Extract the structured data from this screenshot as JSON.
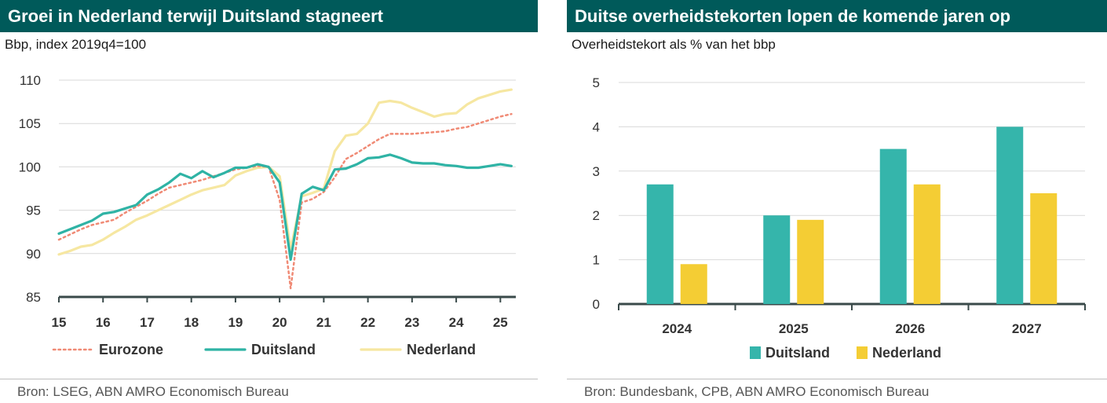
{
  "colors": {
    "header_bg": "#005a5a",
    "eurozone": "#f08a75",
    "duitsland": "#2fb3a5",
    "nederland": "#f6e7a1",
    "bar_duitsland": "#35b5ab",
    "bar_nederland": "#f4cd34",
    "axis": "#3a4a4a",
    "grid": "#d9d9d9"
  },
  "left": {
    "title": "Groei in Nederland terwijl Duitsland stagneert",
    "subtitle": "Bbp, index 2019q4=100",
    "source": "Bron: LSEG, ABN AMRO Economisch Bureau",
    "legend": [
      "Eurozone",
      "Duitsland",
      "Nederland"
    ]
  },
  "right": {
    "title": "Duitse overheidstekorten lopen de komende jaren op",
    "subtitle": "Overheidstekort als % van het bbp",
    "source": "Bron: Bundesbank, CPB, ABN AMRO Economisch Bureau",
    "legend": [
      "Duitsland",
      "Nederland"
    ]
  },
  "chart_data": [
    {
      "type": "line",
      "title": "Groei in Nederland terwijl Duitsland stagneert",
      "ylabel": "Bbp, index 2019q4=100",
      "xlabel": "",
      "x_ticks": [
        "15",
        "16",
        "17",
        "18",
        "19",
        "20",
        "21",
        "22",
        "23",
        "24",
        "25"
      ],
      "y_ticks": [
        "85",
        "90",
        "95",
        "100",
        "105",
        "110"
      ],
      "xlim": [
        2015,
        2025.35
      ],
      "ylim": [
        85,
        111
      ],
      "x": [
        2015.0,
        2015.25,
        2015.5,
        2015.75,
        2016.0,
        2016.25,
        2016.5,
        2016.75,
        2017.0,
        2017.25,
        2017.5,
        2017.75,
        2018.0,
        2018.25,
        2018.5,
        2018.75,
        2019.0,
        2019.25,
        2019.5,
        2019.75,
        2020.0,
        2020.25,
        2020.5,
        2020.75,
        2021.0,
        2021.25,
        2021.5,
        2021.75,
        2022.0,
        2022.25,
        2022.5,
        2022.75,
        2023.0,
        2023.25,
        2023.5,
        2023.75,
        2024.0,
        2024.25,
        2024.5,
        2024.75,
        2025.0,
        2025.25
      ],
      "series": [
        {
          "name": "Eurozone",
          "style": "dotted",
          "values": [
            91.6,
            92.2,
            92.8,
            93.3,
            93.6,
            93.9,
            94.7,
            95.4,
            96.1,
            96.9,
            97.6,
            97.9,
            98.2,
            98.5,
            98.9,
            99.3,
            99.7,
            99.9,
            100.1,
            100.0,
            96.2,
            86.0,
            95.9,
            96.3,
            97.1,
            98.8,
            100.9,
            101.6,
            102.4,
            103.2,
            103.8,
            103.8,
            103.8,
            103.9,
            104.0,
            104.1,
            104.4,
            104.6,
            105.0,
            105.4,
            105.8,
            106.1
          ]
        },
        {
          "name": "Duitsland",
          "style": "solid",
          "values": [
            92.3,
            92.8,
            93.3,
            93.8,
            94.6,
            94.8,
            95.2,
            95.6,
            96.8,
            97.4,
            98.2,
            99.2,
            98.7,
            99.5,
            98.8,
            99.3,
            99.9,
            99.9,
            100.3,
            100.0,
            98.2,
            89.3,
            96.9,
            97.7,
            97.3,
            99.7,
            99.8,
            100.3,
            101.0,
            101.1,
            101.4,
            101.0,
            100.5,
            100.4,
            100.4,
            100.2,
            100.1,
            99.9,
            99.9,
            100.1,
            100.3,
            100.1
          ]
        },
        {
          "name": "Nederland",
          "style": "solid",
          "values": [
            89.9,
            90.3,
            90.8,
            91.0,
            91.6,
            92.4,
            93.1,
            93.9,
            94.4,
            95.0,
            95.6,
            96.2,
            96.8,
            97.3,
            97.6,
            97.9,
            99.0,
            99.5,
            99.9,
            100.0,
            98.9,
            90.5,
            96.6,
            97.0,
            97.5,
            101.8,
            103.6,
            103.8,
            105.0,
            107.4,
            107.6,
            107.4,
            106.8,
            106.3,
            105.8,
            106.1,
            106.2,
            107.2,
            107.9,
            108.3,
            108.7,
            108.9
          ]
        }
      ]
    },
    {
      "type": "bar",
      "title": "Duitse overheidstekorten lopen de komende jaren op",
      "ylabel": "Overheidstekort als % van het bbp",
      "xlabel": "",
      "categories": [
        "2024",
        "2025",
        "2026",
        "2027"
      ],
      "y_ticks": [
        "0",
        "1",
        "2",
        "3",
        "4",
        "5"
      ],
      "ylim": [
        0,
        5
      ],
      "series": [
        {
          "name": "Duitsland",
          "values": [
            2.7,
            2.0,
            3.5,
            4.0
          ]
        },
        {
          "name": "Nederland",
          "values": [
            0.9,
            1.9,
            2.7,
            2.5
          ]
        }
      ]
    }
  ]
}
